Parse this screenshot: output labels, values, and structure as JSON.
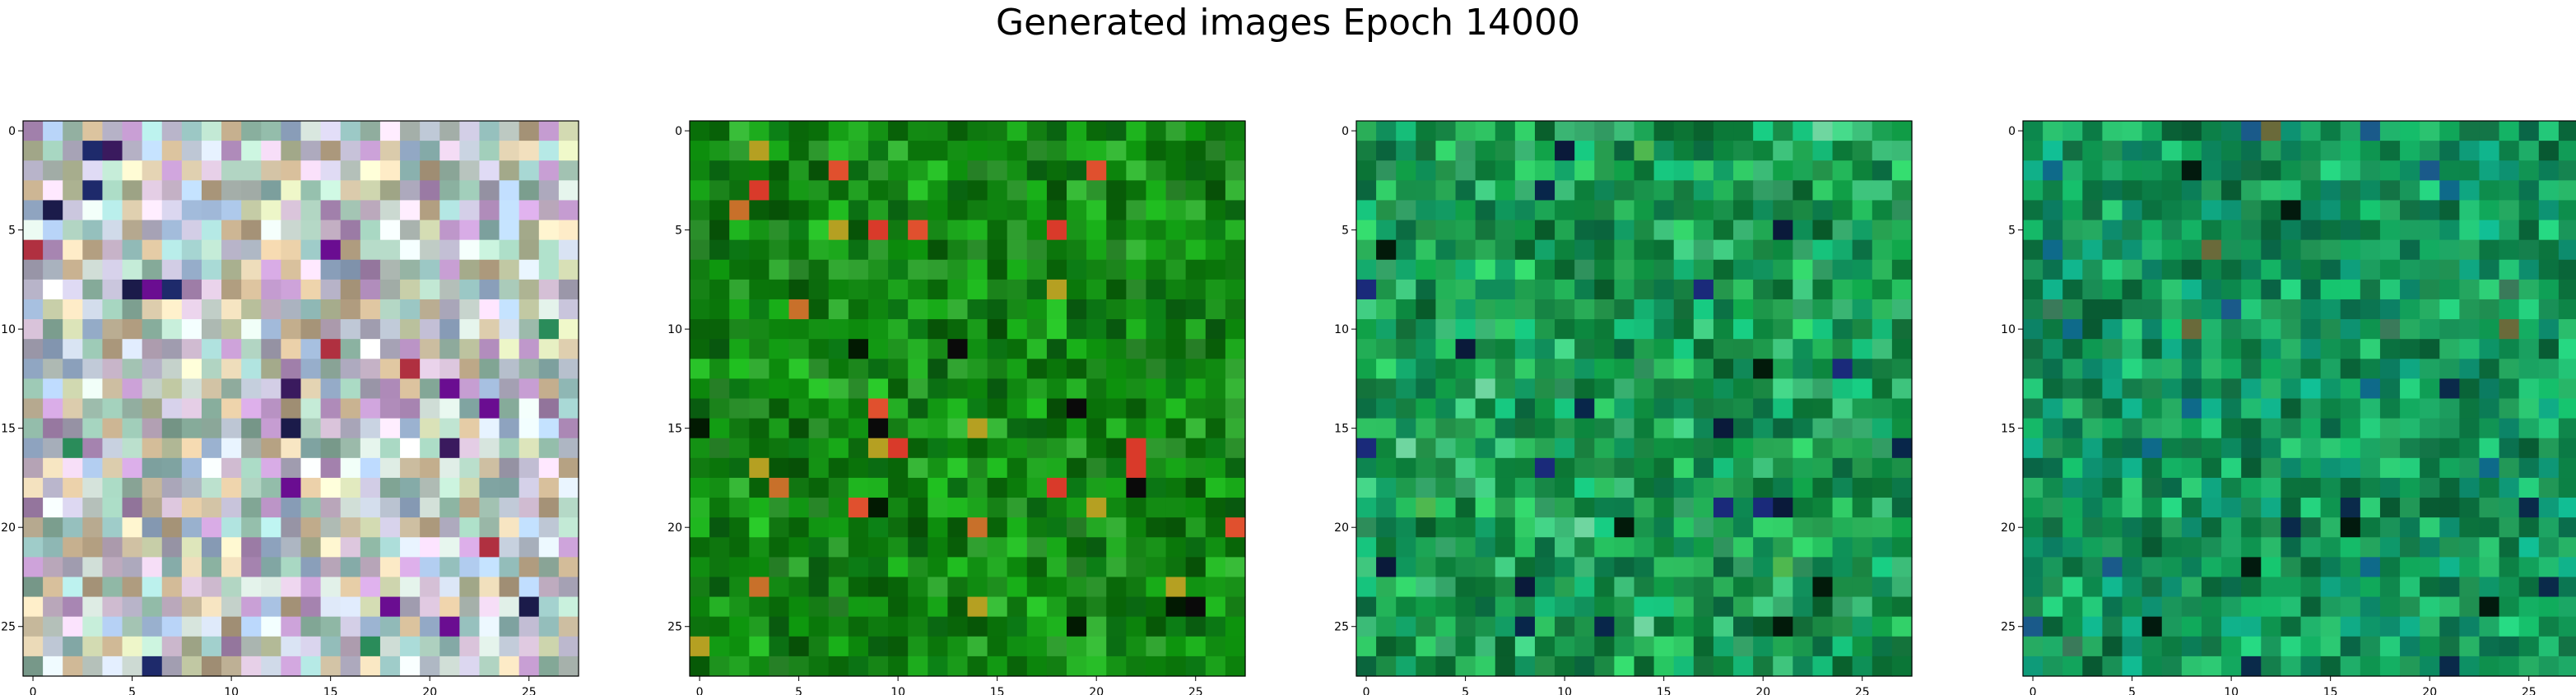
{
  "chart_data": {
    "type": "heatmap",
    "title": "Generated images Epoch 14000",
    "grid": false,
    "panels": [
      {
        "name": "generated-image-1",
        "rows": 28,
        "cols": 28,
        "xlim": [
          -0.5,
          27.5
        ],
        "ylim": [
          27.5,
          -0.5
        ],
        "xticks": [
          0,
          5,
          10,
          15,
          20,
          25
        ],
        "yticks": [
          0,
          5,
          10,
          15,
          20,
          25
        ],
        "palette": [
          "#b7b3c8",
          "#c9d6cf",
          "#a7c8b7",
          "#d5c0d6",
          "#9fb7d6",
          "#c6b08f",
          "#cfd9e8",
          "#8fb7a5",
          "#b48fbf",
          "#e0d0b0",
          "#9bc7c4",
          "#c0c7a2"
        ],
        "dark_accents": [
          "#1b1b4a",
          "#3a1a5e",
          "#6a0d91",
          "#1e2a6b",
          "#b03040",
          "#2a8c5a"
        ]
      },
      {
        "name": "generated-image-2",
        "rows": 28,
        "cols": 28,
        "xlim": [
          -0.5,
          27.5
        ],
        "ylim": [
          27.5,
          -0.5
        ],
        "xticks": [
          0,
          5,
          10,
          15,
          20,
          25
        ],
        "yticks": [
          0,
          5,
          10,
          15,
          20,
          25
        ],
        "palette": [
          "#0b7a0b",
          "#148f14",
          "#0a6a12",
          "#1a9a1a",
          "#086008",
          "#22a322",
          "#0f8210",
          "#2e9a2e"
        ],
        "dark_accents": [
          "#021a02",
          "#0a0a0a",
          "#c8702a",
          "#d93a2a",
          "#b5a022",
          "#e0502e"
        ]
      },
      {
        "name": "generated-image-3",
        "rows": 28,
        "cols": 28,
        "xlim": [
          -0.5,
          27.5
        ],
        "ylim": [
          27.5,
          -0.5
        ],
        "xticks": [
          0,
          5,
          10,
          15,
          20,
          25
        ],
        "yticks": [
          0,
          5,
          10,
          15,
          20,
          25
        ],
        "palette": [
          "#0e8a3e",
          "#1fa04f",
          "#0a6e33",
          "#2bb35a",
          "#178846",
          "#13a66a",
          "#38b070",
          "#0c7a4a"
        ],
        "dark_accents": [
          "#021a0a",
          "#0a1a3a",
          "#1a2a7a",
          "#08264a",
          "#6fd6a0",
          "#4fb84f"
        ]
      },
      {
        "name": "generated-image-4",
        "rows": 28,
        "cols": 28,
        "xlim": [
          -0.5,
          27.5
        ],
        "ylim": [
          27.5,
          -0.5
        ],
        "xticks": [
          0,
          5,
          10,
          15,
          20,
          25
        ],
        "yticks": [
          0,
          5,
          10,
          15,
          20,
          25
        ],
        "palette": [
          "#0d8a4a",
          "#12a05a",
          "#0a6e3e",
          "#1fb06a",
          "#168852",
          "#0e9a78",
          "#25a860",
          "#0b7a55"
        ],
        "dark_accents": [
          "#021a0e",
          "#0a2a4a",
          "#1a5a8a",
          "#0e6a8a",
          "#3a7a5a",
          "#6a6a3a"
        ]
      }
    ]
  }
}
